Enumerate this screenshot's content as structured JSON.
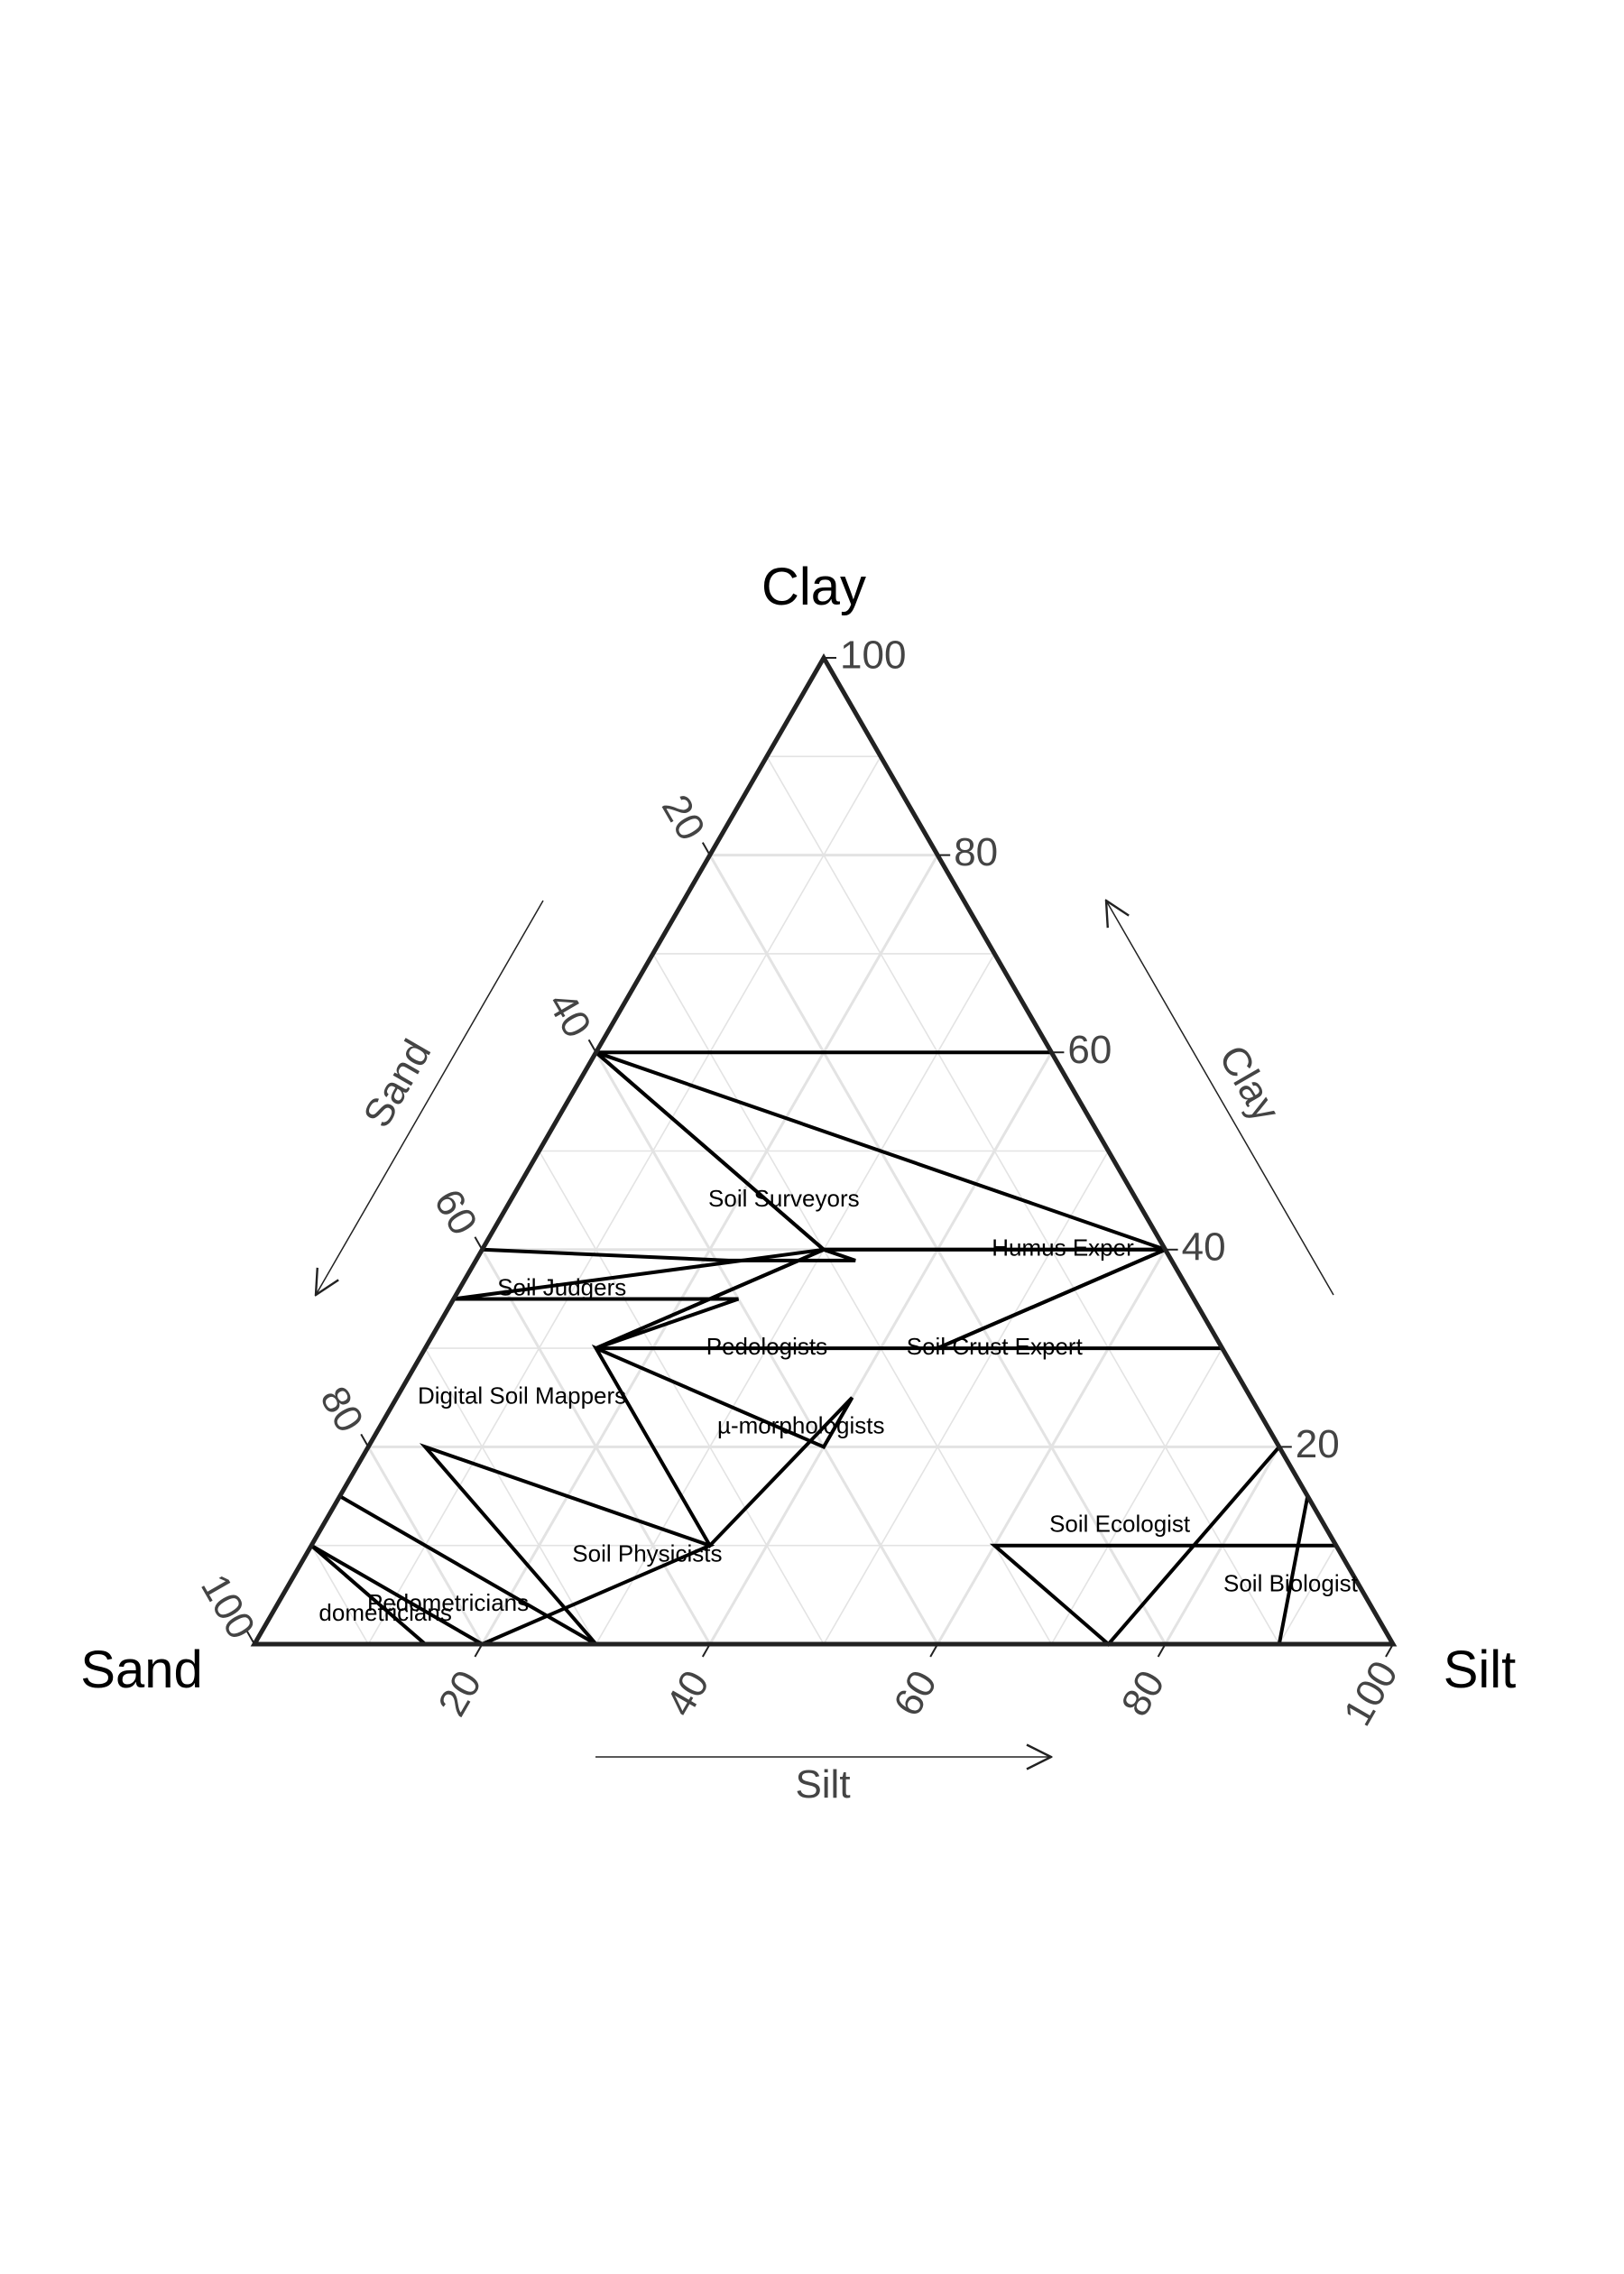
{
  "chart_data": {
    "type": "ternary",
    "vertex_titles": {
      "top": "Clay",
      "left": "Sand",
      "right": "Silt"
    },
    "axis_titles": {
      "left": "Sand",
      "right": "Clay",
      "bottom": "Silt"
    },
    "ticks": [
      20,
      40,
      60,
      80,
      100
    ],
    "tick_labels": [
      "20",
      "40",
      "60",
      "80",
      "100"
    ],
    "grid_step": 10,
    "grid": true,
    "colors": {
      "border": "#222222",
      "grid": "#e3e3e3",
      "region": "#000000",
      "text": "#444444"
    },
    "regions": [
      {
        "name": "Soil Surveyors",
        "label_pos": {
          "sand": 31,
          "silt": 24,
          "clay": 45
        },
        "vertices": [
          [
            0,
            0,
            100
          ],
          [
            40,
            0,
            60
          ],
          [
            30,
            30,
            40
          ],
          [
            0,
            60,
            40
          ],
          [
            0,
            40,
            60
          ]
        ]
      },
      {
        "name": "Humus Expert",
        "label": "Humus Exper",
        "label_pos": {
          "sand": 9,
          "silt": 51,
          "clay": 40
        },
        "vertices": [
          [
            40,
            0,
            60
          ],
          [
            0,
            60,
            40
          ],
          [
            0,
            40,
            60
          ]
        ]
      },
      {
        "name": "Soil Judgers",
        "label_pos": {
          "sand": 55,
          "silt": 9,
          "clay": 36
        },
        "vertices": [
          [
            55,
            0,
            45
          ],
          [
            40,
            0,
            60
          ],
          [
            30,
            30,
            40
          ],
          [
            25,
            30,
            35
          ],
          [
            35,
            20,
            35
          ],
          [
            60,
            0,
            40
          ]
        ]
      },
      {
        "name": "Pedologists",
        "label_pos": {
          "sand": 40,
          "silt": 30,
          "clay": 30
        },
        "vertices": [
          [
            30,
            30,
            40
          ],
          [
            55,
            15,
            30
          ],
          [
            25,
            45,
            30
          ],
          [
            0,
            60,
            40
          ]
        ]
      },
      {
        "name": "Soil Crust Expert",
        "label_pos": {
          "sand": 20,
          "silt": 50,
          "clay": 30
        },
        "vertices": [
          [
            0,
            60,
            40
          ],
          [
            25,
            45,
            30
          ],
          [
            0,
            70,
            30
          ],
          [
            0,
            60,
            40
          ]
        ]
      },
      {
        "name": "Digital Soil Mappers",
        "label_pos": {
          "sand": 64,
          "silt": 11,
          "clay": 25
        },
        "vertices": [
          [
            65,
            0,
            35
          ],
          [
            40,
            25,
            35
          ],
          [
            55,
            15,
            30
          ],
          [
            30,
            30,
            40
          ]
        ]
      },
      {
        "name": "µ-morphologists",
        "label_pos": {
          "sand": 41,
          "silt": 37,
          "clay": 22
        },
        "vertices": [
          [
            55,
            15,
            30
          ],
          [
            40,
            40,
            20
          ],
          [
            35,
            40,
            25
          ],
          [
            55,
            35,
            10
          ]
        ]
      },
      {
        "name": "Soil Physicists",
        "label_pos": {
          "sand": 61,
          "silt": 30,
          "clay": 9
        },
        "vertices": [
          [
            75,
            5,
            20
          ],
          [
            55,
            35,
            10
          ],
          [
            80,
            20,
            0
          ],
          [
            70,
            30,
            0
          ]
        ]
      },
      {
        "name": "Soil Ecologist",
        "label_pos": {
          "sand": 18,
          "silt": 70,
          "clay": 12
        },
        "vertices": [
          [
            30,
            60,
            10
          ],
          [
            25,
            75,
            0
          ],
          [
            0,
            80,
            20
          ],
          [
            0,
            90,
            10
          ]
        ]
      },
      {
        "name": "Soil Biologist",
        "label_pos": {
          "sand": 6,
          "silt": 88,
          "clay": 6
        },
        "vertices": [
          [
            0,
            85,
            15
          ],
          [
            0,
            100,
            0
          ],
          [
            20,
            80,
            0
          ],
          [
            10,
            90,
            0
          ]
        ]
      },
      {
        "name": "Pedometricians",
        "label_pos": {
          "sand": 81,
          "silt": 15,
          "clay": 4
        },
        "vertices": [
          [
            85,
            0,
            15
          ],
          [
            70,
            30,
            0
          ],
          [
            80,
            20,
            0
          ],
          [
            90,
            0,
            10
          ]
        ]
      },
      {
        "name": "Pedometricians",
        "label": "dometricians",
        "label_pos": {
          "sand": 87,
          "silt": 10,
          "clay": 3
        },
        "vertices": [
          [
            90,
            0,
            10
          ],
          [
            85,
            15,
            0
          ],
          [
            100,
            0,
            0
          ]
        ]
      }
    ]
  }
}
